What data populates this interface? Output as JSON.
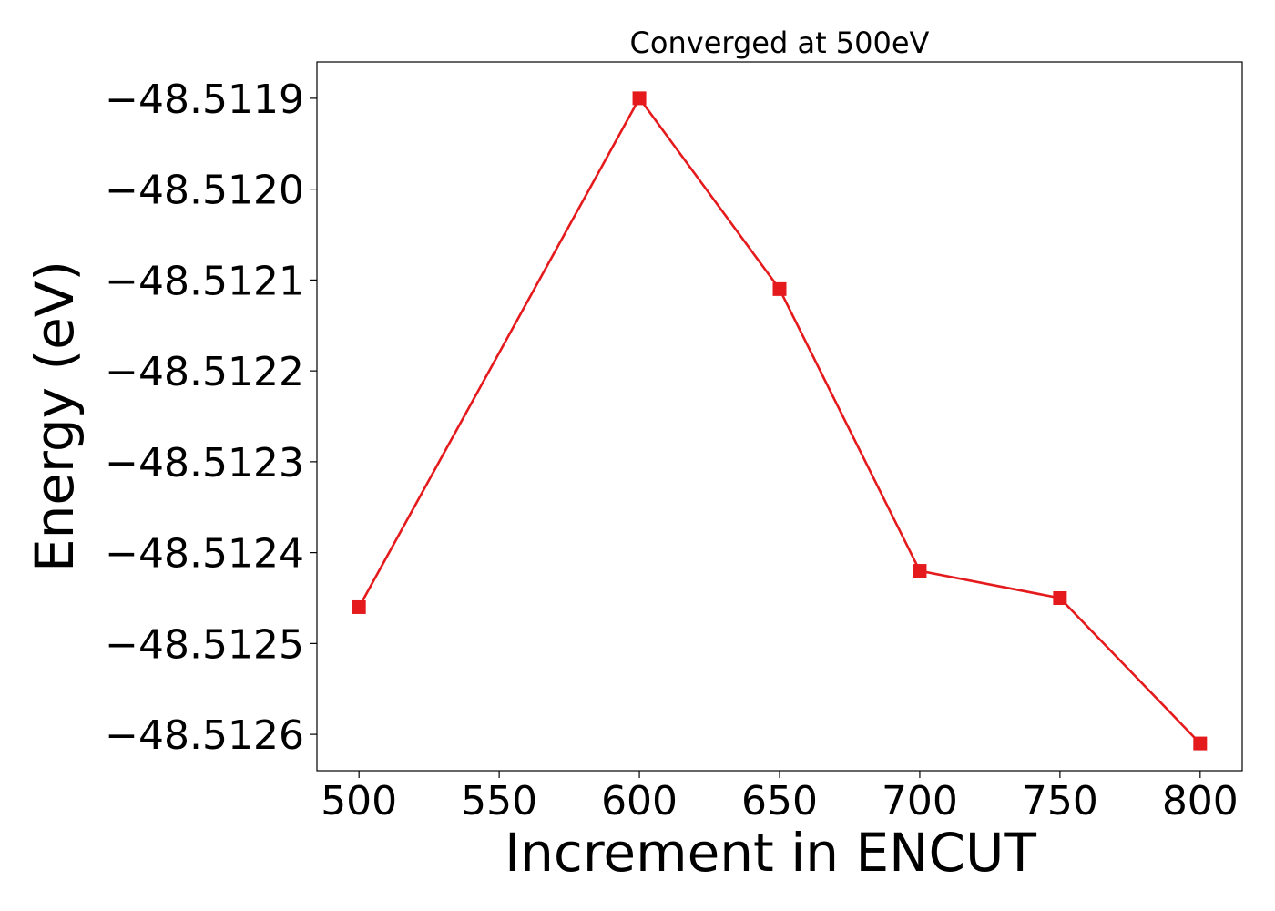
{
  "chart_data": {
    "type": "line",
    "title": "Converged at 500eV",
    "xlabel": "Increment in ENCUT",
    "ylabel": "Energy (eV)",
    "x": [
      500,
      600,
      650,
      700,
      750,
      800
    ],
    "series": [
      {
        "values": [
          -48.51246,
          -48.5119,
          -48.51211,
          -48.51242,
          -48.51245,
          -48.51261
        ],
        "color": "#e41a1c",
        "marker": "square"
      }
    ],
    "xticks": [
      500,
      550,
      600,
      650,
      700,
      750,
      800
    ],
    "xtick_labels": [
      "500",
      "550",
      "600",
      "650",
      "700",
      "750",
      "800"
    ],
    "yticks": [
      -48.5119,
      -48.512,
      -48.5121,
      -48.5122,
      -48.5123,
      -48.5124,
      -48.5125,
      -48.5126
    ],
    "ytick_labels": [
      "−48.5119",
      "−48.5120",
      "−48.5121",
      "−48.5122",
      "−48.5123",
      "−48.5124",
      "−48.5125",
      "−48.5126"
    ],
    "xlim": [
      485,
      815
    ],
    "ylim": [
      -48.51264,
      -48.51186
    ],
    "grid": false,
    "legend": false
  }
}
